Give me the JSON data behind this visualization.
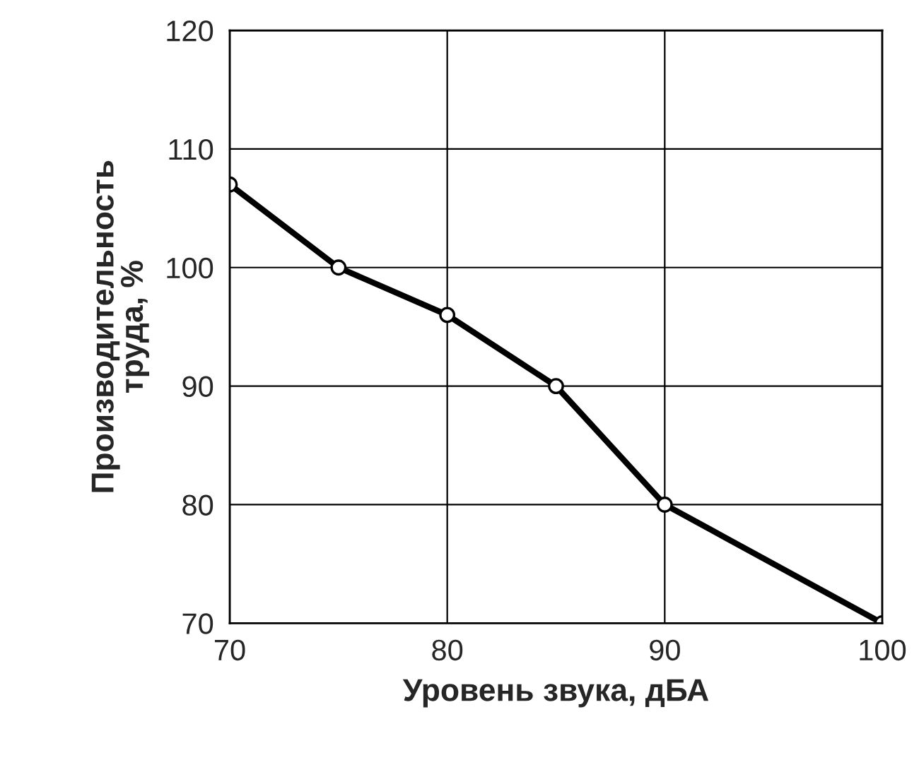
{
  "chart_data": {
    "type": "line",
    "xlabel": "Уровень звука, дБА",
    "ylabel": "Производительность\nтруда, %",
    "x": [
      70,
      75,
      80,
      85,
      90,
      100
    ],
    "series": [
      {
        "color": "#000000",
        "values": [
          107,
          100,
          96,
          90,
          80,
          70
        ]
      }
    ],
    "xlim": [
      70,
      100
    ],
    "xticks": [
      70,
      80,
      90,
      100
    ],
    "ylim": [
      70,
      120
    ],
    "yticks": [
      70,
      80,
      90,
      100,
      110,
      120
    ],
    "grid": true,
    "marker": "circle",
    "line_style": "solid",
    "legend": false
  }
}
